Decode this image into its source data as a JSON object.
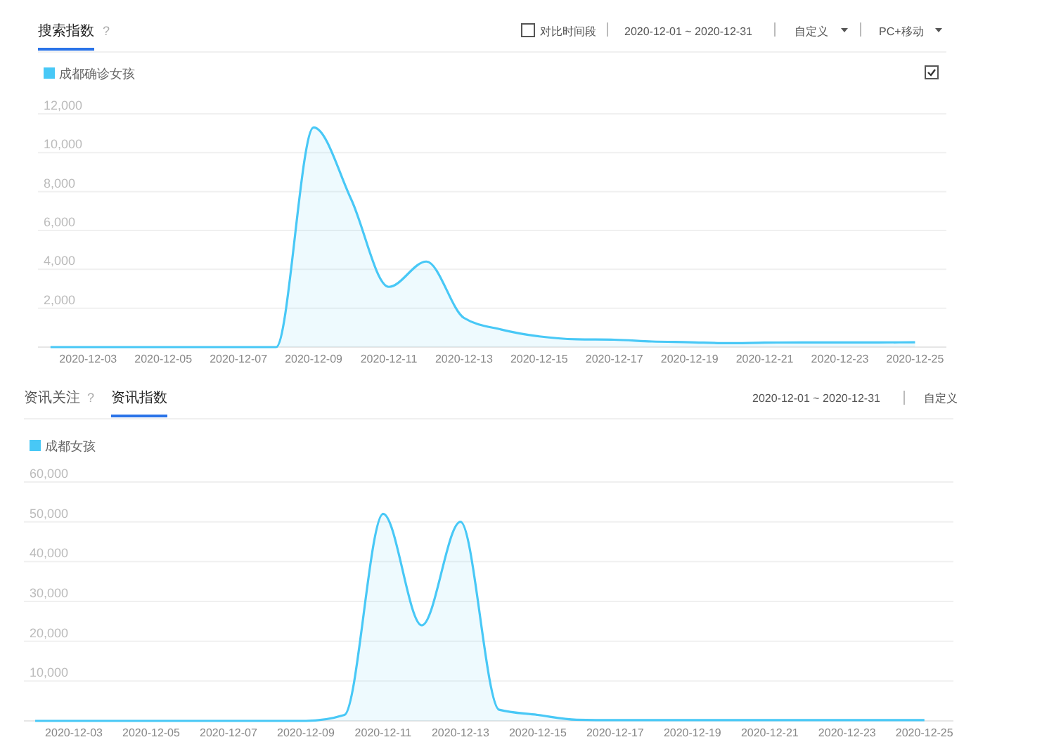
{
  "chart_data": [
    {
      "type": "area",
      "title": "搜索指数",
      "annotations": [
        "?",
        "对比时间段",
        "2020-12-01 ~ 2020-12-31",
        "自定义",
        "PC+移动"
      ],
      "x": [
        "2020-12-02",
        "2020-12-03",
        "2020-12-04",
        "2020-12-05",
        "2020-12-06",
        "2020-12-07",
        "2020-12-08",
        "2020-12-09",
        "2020-12-10",
        "2020-12-11",
        "2020-12-12",
        "2020-12-13",
        "2020-12-14",
        "2020-12-15",
        "2020-12-16",
        "2020-12-17",
        "2020-12-18",
        "2020-12-19",
        "2020-12-20",
        "2020-12-21",
        "2020-12-22",
        "2020-12-23",
        "2020-12-24",
        "2020-12-25"
      ],
      "series": [
        {
          "name": "成都确诊女孩",
          "color": "#48c8f6",
          "values": [
            0,
            0,
            0,
            0,
            0,
            0,
            0,
            11300,
            7600,
            3100,
            4400,
            1500,
            900,
            550,
            400,
            380,
            290,
            250,
            200,
            230,
            240,
            240,
            240,
            250
          ]
        }
      ],
      "xlim": [
        "2020-12-01T16:00",
        "2020-12-25T20:00"
      ],
      "xticks": [
        "2020-12-03",
        "2020-12-05",
        "2020-12-07",
        "2020-12-09",
        "2020-12-11",
        "2020-12-13",
        "2020-12-15",
        "2020-12-17",
        "2020-12-19",
        "2020-12-21",
        "2020-12-23",
        "2020-12-25"
      ],
      "ylim": [
        0,
        12000
      ],
      "yticks": [
        {
          "value": 2000,
          "label": "2,000"
        },
        {
          "value": 4000,
          "label": "4,000"
        },
        {
          "value": 6000,
          "label": "6,000"
        },
        {
          "value": 8000,
          "label": "8,000"
        },
        {
          "value": 10000,
          "label": "10,000"
        },
        {
          "value": 12000,
          "label": "12,000"
        }
      ],
      "grid": "y",
      "legend": "top left"
    },
    {
      "type": "area",
      "title": "资讯指数",
      "annotations": [
        "资讯关注",
        "?",
        "2020-12-01 ~ 2020-12-31",
        "自定义"
      ],
      "x": [
        "2020-12-02",
        "2020-12-03",
        "2020-12-04",
        "2020-12-05",
        "2020-12-06",
        "2020-12-07",
        "2020-12-08",
        "2020-12-09",
        "2020-12-10",
        "2020-12-11",
        "2020-12-12",
        "2020-12-13",
        "2020-12-14",
        "2020-12-15",
        "2020-12-16",
        "2020-12-17",
        "2020-12-18",
        "2020-12-19",
        "2020-12-20",
        "2020-12-21",
        "2020-12-22",
        "2020-12-23",
        "2020-12-24",
        "2020-12-25"
      ],
      "series": [
        {
          "name": "成都女孩",
          "color": "#48c8f6",
          "values": [
            0,
            0,
            0,
            0,
            0,
            0,
            0,
            0,
            1500,
            52000,
            24000,
            50000,
            2800,
            1500,
            300,
            200,
            200,
            200,
            200,
            200,
            200,
            200,
            200,
            200
          ]
        }
      ],
      "xlim": [
        "2020-12-01T17:00",
        "2020-12-25T18:00"
      ],
      "xticks": [
        "2020-12-03",
        "2020-12-05",
        "2020-12-07",
        "2020-12-09",
        "2020-12-11",
        "2020-12-13",
        "2020-12-15",
        "2020-12-17",
        "2020-12-19",
        "2020-12-21",
        "2020-12-23",
        "2020-12-25"
      ],
      "ylim": [
        0,
        60000
      ],
      "yticks": [
        {
          "value": 10000,
          "label": "10,000"
        },
        {
          "value": 20000,
          "label": "20,000"
        },
        {
          "value": 30000,
          "label": "30,000"
        },
        {
          "value": 40000,
          "label": "40,000"
        },
        {
          "value": 50000,
          "label": "50,000"
        },
        {
          "value": 60000,
          "label": "60,000"
        }
      ],
      "grid": "y",
      "legend": "top left"
    }
  ]
}
